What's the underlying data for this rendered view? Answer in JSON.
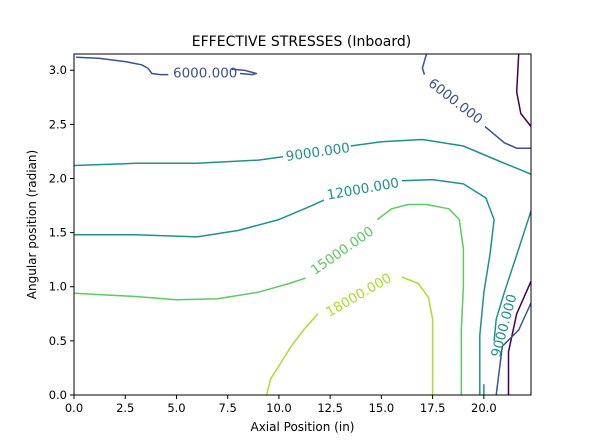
{
  "chart_data": {
    "type": "contour",
    "title": "EFFECTIVE STRESSES (Inboard)",
    "xlabel": "Axial Position (in)",
    "ylabel": "Angular position (radian)",
    "xlim": [
      0,
      22.3
    ],
    "ylim": [
      0,
      3.15
    ],
    "x_ticks": [
      "0.0",
      "2.5",
      "5.0",
      "7.5",
      "10.0",
      "12.5",
      "15.0",
      "17.5",
      "20.0"
    ],
    "y_ticks": [
      "0.0",
      "0.5",
      "1.0",
      "1.5",
      "2.0",
      "2.5",
      "3.0"
    ],
    "grid": false,
    "levels": [
      {
        "level": 3000,
        "color": "#440154",
        "paths": [
          [
            [
              21.7,
              3.15
            ],
            [
              21.6,
              2.8
            ],
            [
              21.8,
              2.6
            ],
            [
              22.3,
              2.48
            ]
          ],
          [
            [
              22.3,
              1.05
            ],
            [
              21.6,
              0.75
            ],
            [
              21.2,
              0.4
            ],
            [
              21.2,
              0.0
            ]
          ]
        ]
      },
      {
        "level": 6000,
        "color": "#3b528b",
        "paths": [
          [
            [
              0.1,
              3.12
            ],
            [
              1.2,
              3.11
            ],
            [
              2.5,
              3.08
            ],
            [
              3.3,
              3.05
            ],
            [
              3.6,
              3.02
            ],
            [
              3.8,
              2.97
            ],
            [
              4.2,
              2.96
            ],
            [
              4.6,
              2.96
            ]
          ],
          [
            [
              8.1,
              2.97
            ],
            [
              8.7,
              2.96
            ],
            [
              8.9,
              2.97
            ],
            [
              8.7,
              2.98
            ],
            [
              8.3,
              3.0
            ],
            [
              7.7,
              3.01
            ]
          ],
          [
            [
              17.2,
              3.15
            ],
            [
              17.0,
              3.02
            ],
            [
              17.1,
              2.96
            ]
          ],
          [
            [
              20.05,
              2.48
            ],
            [
              21.0,
              2.33
            ],
            [
              21.6,
              2.28
            ],
            [
              22.3,
              2.28
            ]
          ],
          [
            [
              22.3,
              0.85
            ],
            [
              21.7,
              0.6
            ],
            [
              20.9,
              0.45
            ],
            [
              20.6,
              0.0
            ]
          ]
        ]
      },
      {
        "level": 9000,
        "color": "#21908d",
        "paths": [
          [
            [
              0,
              2.12
            ],
            [
              3,
              2.14
            ],
            [
              6,
              2.14
            ],
            [
              9,
              2.17
            ],
            [
              10.2,
              2.2
            ]
          ],
          [
            [
              13.5,
              2.3
            ],
            [
              15,
              2.34
            ],
            [
              17,
              2.36
            ],
            [
              19,
              2.3
            ],
            [
              20.5,
              2.18
            ],
            [
              22.3,
              2.04
            ]
          ],
          [
            [
              22.3,
              1.7
            ],
            [
              21.7,
              1.35
            ],
            [
              21.0,
              0.95
            ],
            [
              20.6,
              0.7
            ],
            [
              20.5,
              0.5
            ]
          ],
          [
            [
              20.0,
              0.0
            ],
            [
              20.0,
              0.1
            ]
          ]
        ]
      },
      {
        "level": 12000,
        "color": "#21908d",
        "paths": [
          [
            [
              0,
              1.48
            ],
            [
              3,
              1.48
            ],
            [
              6,
              1.46
            ],
            [
              8,
              1.52
            ],
            [
              10,
              1.62
            ],
            [
              11.5,
              1.74
            ],
            [
              12.2,
              1.8
            ]
          ],
          [
            [
              16.0,
              1.98
            ],
            [
              17.5,
              1.99
            ],
            [
              19.0,
              1.95
            ],
            [
              20.1,
              1.82
            ],
            [
              20.5,
              1.62
            ],
            [
              20.3,
              1.3
            ],
            [
              20.0,
              0.95
            ],
            [
              19.8,
              0.55
            ],
            [
              19.8,
              0.0
            ]
          ]
        ]
      },
      {
        "level": 15000,
        "color": "#5ec962",
        "paths": [
          [
            [
              0,
              0.94
            ],
            [
              3,
              0.91
            ],
            [
              5,
              0.88
            ],
            [
              7,
              0.89
            ],
            [
              9,
              0.95
            ],
            [
              10.5,
              1.03
            ],
            [
              11.3,
              1.08
            ]
          ],
          [
            [
              14.8,
              1.62
            ],
            [
              15.5,
              1.72
            ],
            [
              16.3,
              1.76
            ],
            [
              17.2,
              1.76
            ],
            [
              18.3,
              1.72
            ],
            [
              18.8,
              1.62
            ],
            [
              19.0,
              1.35
            ],
            [
              19.0,
              1.0
            ],
            [
              18.9,
              0.6
            ],
            [
              18.9,
              0.0
            ]
          ]
        ]
      },
      {
        "level": 18000,
        "color": "#addc30",
        "paths": [
          [
            [
              9.4,
              0.0
            ],
            [
              9.6,
              0.15
            ],
            [
              10.1,
              0.3
            ],
            [
              10.6,
              0.45
            ],
            [
              11.2,
              0.6
            ],
            [
              11.9,
              0.75
            ]
          ],
          [
            [
              16.0,
              1.09
            ],
            [
              16.8,
              1.03
            ],
            [
              17.3,
              0.9
            ],
            [
              17.5,
              0.7
            ],
            [
              17.5,
              0.3
            ],
            [
              17.5,
              0.0
            ]
          ]
        ]
      }
    ],
    "annotations": [
      {
        "text": "6000.000",
        "x": 6.4,
        "y": 2.97,
        "rotate": 0,
        "color": "#3b528b"
      },
      {
        "text": "6000.000",
        "x": 18.6,
        "y": 2.71,
        "rotate": 38,
        "color": "#3b528b"
      },
      {
        "text": "9000.000",
        "x": 11.9,
        "y": 2.24,
        "rotate": -8,
        "color": "#21908d"
      },
      {
        "text": "12000.000",
        "x": 14.1,
        "y": 1.9,
        "rotate": -10,
        "color": "#21908d"
      },
      {
        "text": "15000.000",
        "x": 13.1,
        "y": 1.33,
        "rotate": -35,
        "color": "#5ec962"
      },
      {
        "text": "18000.000",
        "x": 13.9,
        "y": 0.92,
        "rotate": -30,
        "color": "#addc30"
      },
      {
        "text": "9000.000",
        "x": 21.0,
        "y": 0.64,
        "rotate": -75,
        "color": "#21908d"
      }
    ]
  }
}
